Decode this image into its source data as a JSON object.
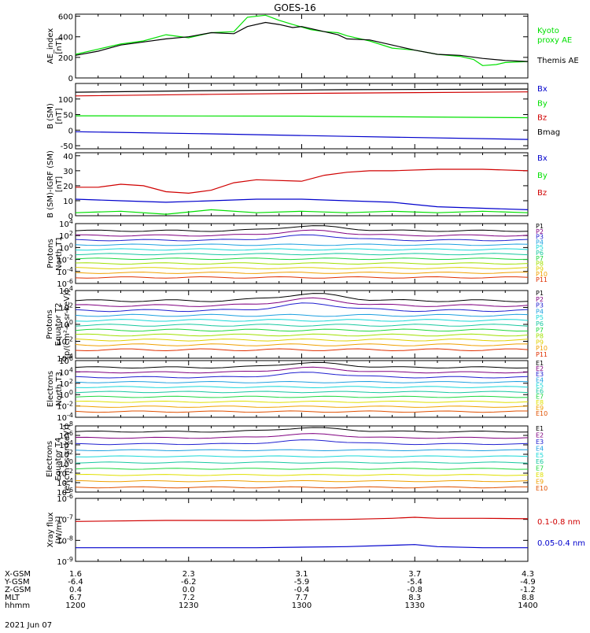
{
  "title": "GOES-16",
  "date": "2021 Jun 07",
  "colors": {
    "black": "#000000",
    "green": "#00e000",
    "blue": "#0000cc",
    "red": "#d00000",
    "P": [
      "#000000",
      "#800080",
      "#2020d0",
      "#1ea0e0",
      "#18d8d8",
      "#18c8a0",
      "#20d840",
      "#a0e000",
      "#e0d000",
      "#f0a000",
      "#e03000"
    ],
    "E": [
      "#000000",
      "#800080",
      "#2020d0",
      "#1ea0e0",
      "#18d8d8",
      "#18c8a0",
      "#20d840",
      "#e0e000",
      "#f0a000",
      "#e05000",
      "#d00000",
      "#b00000"
    ]
  },
  "ephemeris": {
    "labels": [
      "X-GSM",
      "Y-GSM",
      "Z-GSM",
      "MLT",
      "hhmm"
    ],
    "columns": [
      [
        "1.6",
        "-6.4",
        "0.4",
        "6.7",
        "1200"
      ],
      [
        "2.3",
        "-6.2",
        "0.0",
        "7.2",
        "1230"
      ],
      [
        "3.1",
        "-5.9",
        "-0.4",
        "7.7",
        "1300"
      ],
      [
        "3.7",
        "-5.4",
        "-0.8",
        "8.3",
        "1330"
      ],
      [
        "4.3",
        "-4.9",
        "-1.2",
        "8.8",
        "1400"
      ]
    ]
  },
  "chart_data": [
    {
      "type": "line",
      "ylabel": [
        "AE_index",
        "[nT]"
      ],
      "ylim": [
        0,
        620
      ],
      "yticks": [
        "0",
        "200",
        "400",
        "600"
      ],
      "series": [
        {
          "name": "Kyoto proxy AE",
          "label_lines": [
            "Kyoto",
            "proxy AE"
          ],
          "color": "#00e000",
          "x": [
            0,
            0.05,
            0.1,
            0.15,
            0.2,
            0.25,
            0.28,
            0.3,
            0.35,
            0.38,
            0.42,
            0.45,
            0.48,
            0.52,
            0.55,
            0.58,
            0.6,
            0.65,
            0.7,
            0.75,
            0.8,
            0.85,
            0.88,
            0.9,
            0.93,
            0.95,
            1
          ],
          "y": [
            230,
            280,
            330,
            360,
            420,
            390,
            420,
            440,
            450,
            590,
            610,
            560,
            520,
            470,
            450,
            440,
            410,
            360,
            290,
            270,
            230,
            210,
            180,
            120,
            130,
            150,
            160
          ]
        },
        {
          "name": "Themis AE",
          "label_lines": [
            "Themis AE"
          ],
          "color": "#000000",
          "x": [
            0,
            0.05,
            0.1,
            0.15,
            0.2,
            0.25,
            0.3,
            0.35,
            0.38,
            0.42,
            0.45,
            0.48,
            0.5,
            0.55,
            0.58,
            0.6,
            0.65,
            0.7,
            0.75,
            0.8,
            0.85,
            0.9,
            0.95,
            1
          ],
          "y": [
            220,
            260,
            320,
            350,
            380,
            400,
            440,
            430,
            500,
            540,
            520,
            490,
            500,
            450,
            420,
            380,
            370,
            320,
            270,
            230,
            220,
            190,
            170,
            160
          ]
        }
      ]
    },
    {
      "type": "line",
      "ylabel": [
        "B (SM)",
        "[nT]"
      ],
      "ylim": [
        -60,
        150
      ],
      "yticks": [
        "-50",
        "0",
        "50",
        "100"
      ],
      "series": [
        {
          "name": "Bx",
          "color": "#0000cc",
          "x": [
            0,
            0.3,
            0.6,
            1
          ],
          "y": [
            -5,
            -12,
            -20,
            -30
          ]
        },
        {
          "name": "By",
          "color": "#00e000",
          "x": [
            0,
            0.5,
            1
          ],
          "y": [
            46,
            45,
            40
          ]
        },
        {
          "name": "Bz",
          "color": "#d00000",
          "x": [
            0,
            0.3,
            0.5,
            1
          ],
          "y": [
            110,
            115,
            118,
            123
          ]
        },
        {
          "name": "Bmag",
          "color": "#000000",
          "x": [
            0,
            0.3,
            0.6,
            1
          ],
          "y": [
            122,
            127,
            130,
            132
          ]
        }
      ]
    },
    {
      "type": "line",
      "ylabel": [
        "B (SM)-IGRF (SM)",
        "[nT]"
      ],
      "ylim": [
        0,
        42
      ],
      "yticks": [
        "0",
        "10",
        "20",
        "30",
        "40"
      ],
      "series": [
        {
          "name": "Bx",
          "color": "#0000cc",
          "x": [
            0,
            0.1,
            0.2,
            0.3,
            0.4,
            0.5,
            0.6,
            0.7,
            0.8,
            0.9,
            1
          ],
          "y": [
            11,
            10,
            9,
            10,
            11,
            11,
            10,
            9,
            6,
            5,
            4
          ]
        },
        {
          "name": "By",
          "color": "#00e000",
          "x": [
            0,
            0.1,
            0.2,
            0.3,
            0.4,
            0.5,
            0.6,
            0.7,
            0.8,
            0.9,
            1
          ],
          "y": [
            2,
            3,
            1,
            4,
            2,
            3,
            2,
            3,
            2,
            3,
            2
          ]
        },
        {
          "name": "Bz",
          "color": "#d00000",
          "x": [
            0,
            0.05,
            0.1,
            0.15,
            0.2,
            0.25,
            0.3,
            0.35,
            0.4,
            0.5,
            0.55,
            0.6,
            0.65,
            0.7,
            0.8,
            0.9,
            1
          ],
          "y": [
            19,
            19,
            21,
            20,
            16,
            15,
            17,
            22,
            24,
            23,
            27,
            29,
            30,
            30,
            31,
            31,
            30
          ]
        }
      ]
    },
    {
      "type": "line",
      "ylabel": [
        "Protons",
        "North T1"
      ],
      "ylog": true,
      "ylim": [
        -6,
        4
      ],
      "yticks": [
        "10^-6",
        "10^-4",
        "10^-2",
        "10^0",
        "10^2",
        "10^4"
      ],
      "legend": [
        "P1",
        "P2",
        "P3",
        "P4",
        "P5",
        "P6",
        "P7",
        "P8",
        "P9",
        "P10",
        "P11"
      ]
    },
    {
      "type": "line",
      "ylabel": [
        "Protons",
        "Equator T2",
        "[p/(cm²-s-sr-keV)]"
      ],
      "ylog": true,
      "ylim": [
        -4,
        4
      ],
      "yticks": [
        "10^-4",
        "10^-2",
        "10^0",
        "10^2",
        "10^4"
      ],
      "legend": [
        "P1",
        "P2",
        "P3",
        "P4",
        "P5",
        "P6",
        "P7",
        "P8",
        "P9",
        "P10",
        "P11"
      ]
    },
    {
      "type": "line",
      "ylabel": [
        "Electrons",
        "North T3"
      ],
      "ylog": true,
      "ylim": [
        -4,
        6
      ],
      "yticks": [
        "10^-4",
        "10^-2",
        "10^0",
        "10^2",
        "10^4",
        "10^6"
      ],
      "legend": [
        "E1",
        "E2",
        "E3",
        "E4",
        "E5",
        "E6",
        "E7",
        "E8",
        "E9",
        "E10"
      ]
    },
    {
      "type": "line",
      "ylabel": [
        "Electrons",
        "Equator T4",
        "[e/(cm²-s-sr-keV)]"
      ],
      "ylog": true,
      "ylim": [
        -6,
        8
      ],
      "yticks": [
        "10^-6",
        "10^-4",
        "10^-2",
        "10^0",
        "10^2",
        "10^4",
        "10^6",
        "10^8"
      ],
      "legend": [
        "E1",
        "E2",
        "E3",
        "E4",
        "E5",
        "E6",
        "E7",
        "E8",
        "E9",
        "E10"
      ]
    },
    {
      "type": "line",
      "ylabel": [
        "Xray flux",
        "[W/m²]"
      ],
      "ylog": true,
      "ylim": [
        -9,
        -6
      ],
      "yticks": [
        "10^-9",
        "10^-8",
        "10^-7",
        "10^-6"
      ],
      "series": [
        {
          "name": "0.1-0.8 nm",
          "color": "#d00000",
          "x": [
            0,
            0.2,
            0.4,
            0.6,
            0.7,
            0.75,
            0.8,
            0.9,
            1
          ],
          "y": [
            -7.1,
            -7.05,
            -7.05,
            -7.0,
            -6.95,
            -6.9,
            -6.95,
            -6.95,
            -6.97
          ]
        },
        {
          "name": "0.05-0.4 nm",
          "color": "#0000cc",
          "x": [
            0,
            0.2,
            0.4,
            0.6,
            0.75,
            0.8,
            0.9,
            1
          ],
          "y": [
            -8.35,
            -8.35,
            -8.35,
            -8.3,
            -8.2,
            -8.3,
            -8.35,
            -8.35
          ]
        }
      ]
    }
  ]
}
